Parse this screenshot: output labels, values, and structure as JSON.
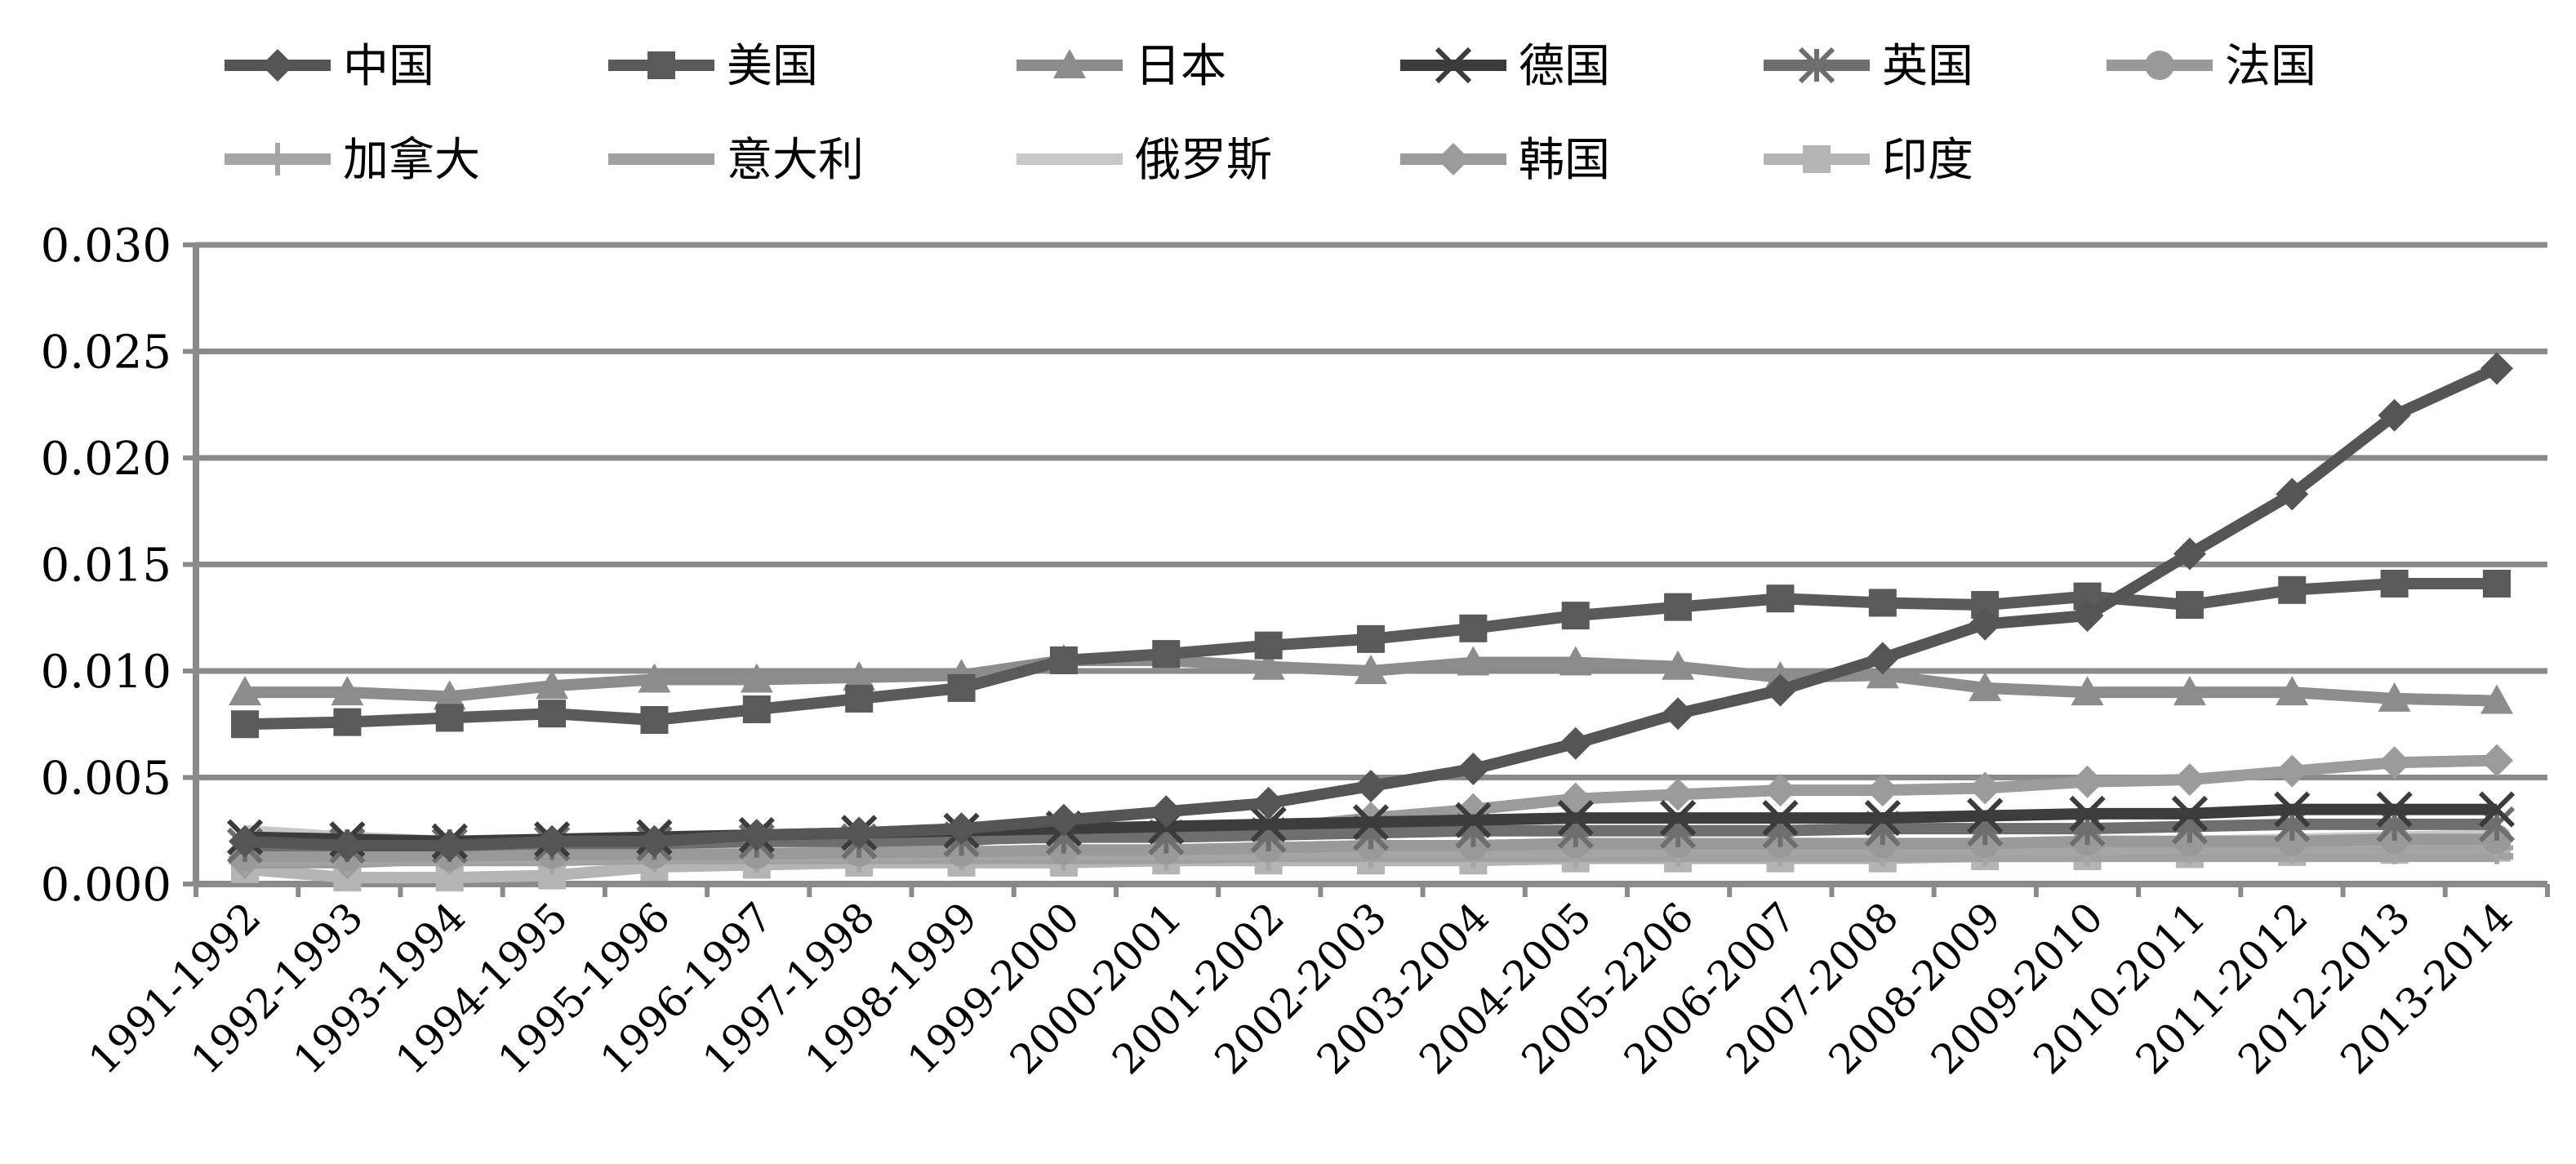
{
  "chart_data": {
    "type": "line",
    "title": "",
    "xlabel": "",
    "ylabel": "",
    "ylim": [
      0,
      0.03
    ],
    "yticks": [
      "0.000",
      "0.005",
      "0.010",
      "0.015",
      "0.020",
      "0.025",
      "0.030"
    ],
    "grid": true,
    "legend_position": "top",
    "categories": [
      "1991-1992",
      "1992-1993",
      "1993-1994",
      "1994-1995",
      "1995-1996",
      "1996-1997",
      "1997-1998",
      "1998-1999",
      "1999-2000",
      "2000-2001",
      "2001-2002",
      "2002-2003",
      "2003-2004",
      "2004-2005",
      "2005-2206",
      "2006-2007",
      "2007-2008",
      "2008-2009",
      "2009-2010",
      "2010-2011",
      "2011-2012",
      "2012-2013",
      "2013-2014"
    ],
    "series": [
      {
        "name": "中国",
        "marker": "diamond",
        "color": "#555555",
        "values": [
          0.002,
          0.0018,
          0.0018,
          0.002,
          0.002,
          0.0023,
          0.0024,
          0.0026,
          0.003,
          0.0034,
          0.0038,
          0.0046,
          0.0054,
          0.0066,
          0.008,
          0.0091,
          0.0106,
          0.0122,
          0.0126,
          0.0155,
          0.0183,
          0.022,
          0.0242
        ]
      },
      {
        "name": "美国",
        "marker": "square",
        "color": "#5a5a5a",
        "values": [
          0.0075,
          0.0076,
          0.0078,
          0.008,
          0.0077,
          0.0082,
          0.0087,
          0.0092,
          0.0105,
          0.0108,
          0.0112,
          0.0115,
          0.012,
          0.0126,
          0.013,
          0.0134,
          0.0132,
          0.0131,
          0.0135,
          0.0131,
          0.0138,
          0.0141,
          0.0141
        ]
      },
      {
        "name": "日本",
        "marker": "triangle",
        "color": "#8c8c8c",
        "values": [
          0.009,
          0.009,
          0.0088,
          0.0093,
          0.0096,
          0.0096,
          0.0097,
          0.0098,
          0.0105,
          0.0105,
          0.0102,
          0.01,
          0.0104,
          0.0104,
          0.0102,
          0.0097,
          0.0098,
          0.0092,
          0.009,
          0.009,
          0.009,
          0.0087,
          0.0086
        ]
      },
      {
        "name": "德国",
        "marker": "x",
        "color": "#3c3c3c",
        "values": [
          0.0022,
          0.0021,
          0.002,
          0.0021,
          0.0022,
          0.0023,
          0.0024,
          0.0025,
          0.0026,
          0.0027,
          0.0028,
          0.0029,
          0.003,
          0.0031,
          0.0031,
          0.0031,
          0.0031,
          0.0032,
          0.0033,
          0.0033,
          0.0035,
          0.0035,
          0.0035
        ]
      },
      {
        "name": "英国",
        "marker": "asterisk",
        "color": "#6e6e6e",
        "values": [
          0.0018,
          0.0018,
          0.0018,
          0.0019,
          0.0019,
          0.002,
          0.002,
          0.0021,
          0.0022,
          0.0022,
          0.0023,
          0.0024,
          0.0025,
          0.0025,
          0.0025,
          0.0025,
          0.0026,
          0.0026,
          0.0026,
          0.0027,
          0.0028,
          0.0028,
          0.0028
        ]
      },
      {
        "name": "法国",
        "marker": "circle",
        "color": "#999999",
        "values": [
          0.0013,
          0.0013,
          0.0013,
          0.0014,
          0.0014,
          0.0014,
          0.0015,
          0.0015,
          0.0016,
          0.0016,
          0.0017,
          0.0018,
          0.0018,
          0.0019,
          0.0019,
          0.0019,
          0.0019,
          0.0019,
          0.002,
          0.002,
          0.002,
          0.0021,
          0.0021
        ]
      },
      {
        "name": "加拿大",
        "marker": "plus",
        "color": "#a5a5a5",
        "values": [
          0.0012,
          0.0012,
          0.0012,
          0.0012,
          0.0013,
          0.0013,
          0.0013,
          0.0014,
          0.0014,
          0.0014,
          0.0014,
          0.0015,
          0.0015,
          0.0015,
          0.0016,
          0.0016,
          0.0016,
          0.0016,
          0.0016,
          0.0017,
          0.0017,
          0.0017,
          0.0017
        ]
      },
      {
        "name": "意大利",
        "marker": "dash",
        "color": "#a0a0a0",
        "values": [
          0.0011,
          0.0011,
          0.0011,
          0.0011,
          0.0012,
          0.0012,
          0.0012,
          0.0012,
          0.0012,
          0.0012,
          0.0013,
          0.0013,
          0.0013,
          0.0013,
          0.0013,
          0.0013,
          0.0013,
          0.0013,
          0.0013,
          0.0013,
          0.0013,
          0.0013,
          0.0013
        ]
      },
      {
        "name": "俄罗斯",
        "marker": "none",
        "color": "#c8c8c8",
        "values": [
          0.0025,
          0.0022,
          0.002,
          0.0018,
          0.0016,
          0.0015,
          0.0015,
          0.0014,
          0.0014,
          0.0015,
          0.0015,
          0.0016,
          0.0016,
          0.0017,
          0.0017,
          0.0018,
          0.0018,
          0.0019,
          0.002,
          0.002,
          0.0021,
          0.0022,
          0.0023
        ]
      },
      {
        "name": "韩国",
        "marker": "diamond",
        "color": "#9b9b9b",
        "values": [
          0.001,
          0.001,
          0.0012,
          0.0018,
          0.002,
          0.0021,
          0.002,
          0.002,
          0.0024,
          0.0024,
          0.0026,
          0.0031,
          0.0035,
          0.004,
          0.0042,
          0.0044,
          0.0044,
          0.0045,
          0.0048,
          0.0049,
          0.0053,
          0.0057,
          0.0058
        ]
      },
      {
        "name": "印度",
        "marker": "square",
        "color": "#b4b4b4",
        "values": [
          0.0007,
          0.0003,
          0.0003,
          0.0004,
          0.0008,
          0.0009,
          0.001,
          0.001,
          0.001,
          0.0011,
          0.0011,
          0.0011,
          0.0011,
          0.0012,
          0.0012,
          0.0012,
          0.0012,
          0.0013,
          0.0013,
          0.0014,
          0.0015,
          0.0016,
          0.0017
        ]
      }
    ]
  }
}
